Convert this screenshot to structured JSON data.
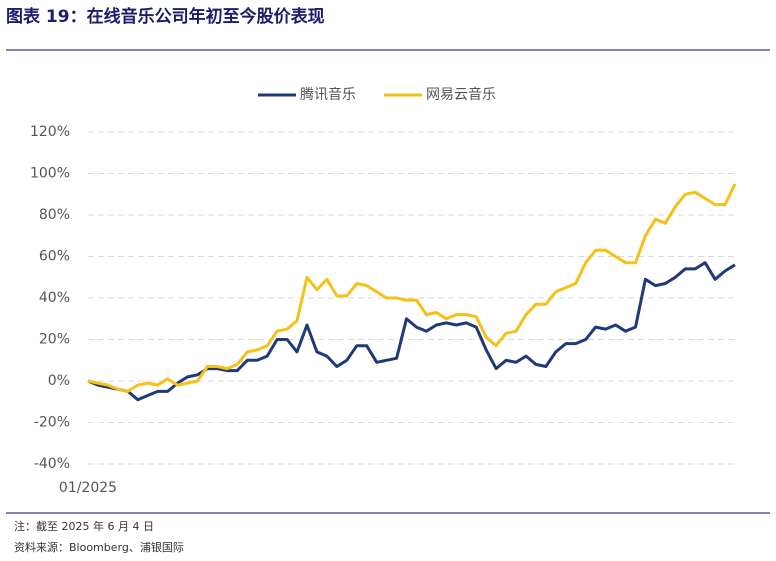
{
  "header": {
    "title": "图表 19：在线音乐公司年初至今股价表现"
  },
  "chart_data": {
    "type": "line",
    "categories": [
      "01/2025",
      null,
      null,
      null,
      null,
      null,
      null,
      null,
      null,
      null,
      null,
      null,
      null,
      null,
      null,
      null,
      null,
      null,
      null,
      null,
      null,
      null,
      null,
      null,
      null,
      null,
      null,
      null,
      null,
      null,
      null,
      null,
      null,
      null,
      null,
      null,
      null,
      null,
      null,
      null,
      null,
      null,
      null,
      null,
      null,
      null,
      null,
      null,
      null,
      null,
      null,
      null,
      null,
      null,
      null,
      null,
      null,
      null,
      null,
      null,
      null,
      null,
      null,
      null,
      null,
      null
    ],
    "series": [
      {
        "name": "腾讯音乐",
        "color": "#1f3a7a",
        "values": [
          0,
          -2,
          -3,
          -4,
          -5,
          -9,
          -7,
          -5,
          -5,
          -1,
          2,
          3,
          6,
          6,
          5,
          5,
          10,
          10,
          12,
          20,
          20,
          14,
          27,
          14,
          12,
          7,
          10,
          17,
          17,
          9,
          10,
          11,
          30,
          26,
          24,
          27,
          28,
          27,
          28,
          26,
          15,
          6,
          10,
          9,
          12,
          8,
          7,
          14,
          18,
          18,
          20,
          26,
          25,
          27,
          24,
          26,
          49,
          46,
          47,
          50,
          54,
          54,
          57,
          49,
          53,
          56
        ]
      },
      {
        "name": "网易云音乐",
        "color": "#f5c118",
        "values": [
          0,
          -1,
          -2,
          -4,
          -5,
          -2,
          -1,
          -2,
          1,
          -2,
          -1,
          0,
          7,
          7,
          6,
          8,
          14,
          15,
          17,
          24,
          25,
          29,
          50,
          44,
          49,
          41,
          41,
          47,
          46,
          43,
          40,
          40,
          39,
          39,
          32,
          33,
          30,
          32,
          32,
          31,
          21,
          17,
          23,
          24,
          32,
          37,
          37,
          43,
          45,
          47,
          57,
          63,
          63,
          60,
          57,
          57,
          70,
          78,
          76,
          84,
          90,
          91,
          88,
          85,
          85,
          95
        ]
      }
    ],
    "ylim": [
      -40,
      120
    ],
    "yticks": [
      {
        "value": -40,
        "label": "-40%"
      },
      {
        "value": -20,
        "label": "-20%"
      },
      {
        "value": 0,
        "label": "0%"
      },
      {
        "value": 20,
        "label": "20%"
      },
      {
        "value": 40,
        "label": "40%"
      },
      {
        "value": 60,
        "label": "60%"
      },
      {
        "value": 80,
        "label": "80%"
      },
      {
        "value": 100,
        "label": "100%"
      },
      {
        "value": 120,
        "label": "120%"
      }
    ],
    "grid": true,
    "legend": "top"
  },
  "footer": {
    "note": "注：截至 2025 年 6 月 4 日",
    "source": "资料来源：Bloomberg、浦银国际"
  }
}
